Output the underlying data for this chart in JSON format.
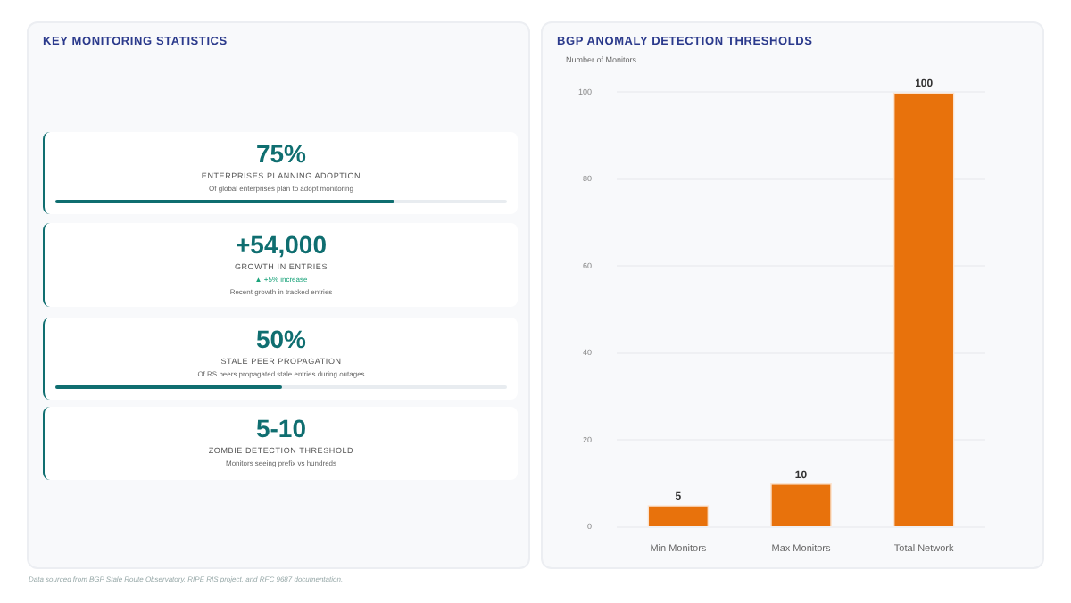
{
  "chart_data": [
    {
      "type": "other",
      "title": "KEY MONITORING STATISTICS",
      "categories": [
        "ENTERPRISES PLANNING ADOPTION",
        "GROWTH IN ENTRIES",
        "STALE PEER PROPAGATION",
        "ZOMBIE DETECTION THRESHOLD"
      ],
      "values": [
        75,
        54000,
        50,
        null
      ],
      "value_labels": [
        "75%",
        "+54,000",
        "50%",
        "5-10"
      ],
      "annotations": [
        {
          "text": "Of global enterprises plan to adopt monitoring",
          "x": "ENTERPRISES PLANNING ADOPTION"
        },
        {
          "text": "▲ +5% increase",
          "x": "GROWTH IN ENTRIES"
        },
        {
          "text": "Recent growth in tracked entries",
          "x": "GROWTH IN ENTRIES"
        },
        {
          "text": "Of RS peers propagated stale entries during outages",
          "x": "STALE PEER PROPAGATION"
        },
        {
          "text": "Monitors seeing prefix vs hundreds",
          "x": "ZOMBIE DETECTION THRESHOLD"
        },
        "Data sourced from BGP Stale Route Observatory, RIPE RIS project, and RFC 9687 documentation."
      ]
    },
    {
      "type": "bar",
      "title": "BGP ANOMALY DETECTION THRESHOLDS",
      "ylabel": "Number of Monitors",
      "categories": [
        "Min Monitors",
        "Max Monitors",
        "Total Network"
      ],
      "values": [
        5,
        10,
        100
      ],
      "color": "#e8720c",
      "data_labels": true,
      "ylim": [
        0,
        100
      ],
      "yticks": [
        0,
        20,
        40,
        60,
        80,
        100
      ],
      "grid": "y",
      "legend": false
    }
  ]
}
